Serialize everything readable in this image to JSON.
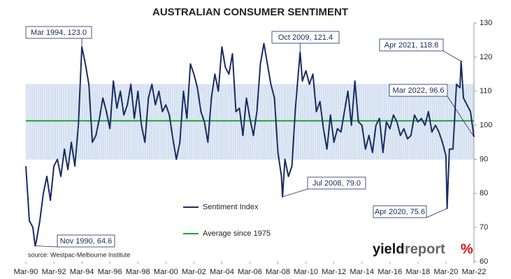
{
  "chart_data": {
    "type": "line",
    "title": "AUSTRALIAN CONSUMER SENTIMENT",
    "source": "source: Westpac-Melbourne Institute",
    "watermark": [
      "yield",
      "report",
      "%"
    ],
    "xlim": [
      1990.167,
      2022.167
    ],
    "xticks": [
      {
        "value": 1990.167,
        "label": "Mar-90"
      },
      {
        "value": 1992.167,
        "label": "Mar-92"
      },
      {
        "value": 1994.167,
        "label": "Mar-94"
      },
      {
        "value": 1996.167,
        "label": "Mar-96"
      },
      {
        "value": 1998.167,
        "label": "Mar-98"
      },
      {
        "value": 2000.167,
        "label": "Mar-00"
      },
      {
        "value": 2002.167,
        "label": "Mar-02"
      },
      {
        "value": 2004.167,
        "label": "Mar-04"
      },
      {
        "value": 2006.167,
        "label": "Mar-06"
      },
      {
        "value": 2008.167,
        "label": "Mar-08"
      },
      {
        "value": 2010.167,
        "label": "Mar-10"
      },
      {
        "value": 2012.167,
        "label": "Mar-12"
      },
      {
        "value": 2014.167,
        "label": "Mar-14"
      },
      {
        "value": 2016.167,
        "label": "Mar-16"
      },
      {
        "value": 2018.167,
        "label": "Mar-18"
      },
      {
        "value": 2020.167,
        "label": "Mar-20"
      },
      {
        "value": 2022.167,
        "label": "Mar-22"
      }
    ],
    "ylim": [
      60,
      130
    ],
    "yticks": [
      60,
      70,
      80,
      90,
      100,
      110,
      120,
      130
    ],
    "shaded_range": [
      90,
      112
    ],
    "shaded_color": "#c9d8ee",
    "average": {
      "name": "Average since 1975",
      "value": 101.3,
      "color": "#1fa23a"
    },
    "x": [
      1990.167,
      1990.417,
      1990.667,
      1990.833,
      1990.917,
      1991.167,
      1991.417,
      1991.667,
      1991.917,
      1992.167,
      1992.417,
      1992.667,
      1992.917,
      1993.167,
      1993.417,
      1993.667,
      1993.917,
      1994.167,
      1994.417,
      1994.667,
      1994.917,
      1995.167,
      1995.417,
      1995.667,
      1995.917,
      1996.167,
      1996.417,
      1996.667,
      1996.917,
      1997.167,
      1997.417,
      1997.667,
      1997.917,
      1998.167,
      1998.417,
      1998.667,
      1998.917,
      1999.167,
      1999.417,
      1999.667,
      1999.917,
      2000.167,
      2000.417,
      2000.667,
      2000.917,
      2001.167,
      2001.417,
      2001.667,
      2001.917,
      2002.167,
      2002.417,
      2002.667,
      2002.917,
      2003.167,
      2003.417,
      2003.667,
      2003.917,
      2004.167,
      2004.417,
      2004.667,
      2004.917,
      2005.167,
      2005.417,
      2005.667,
      2005.917,
      2006.167,
      2006.417,
      2006.667,
      2006.917,
      2007.167,
      2007.417,
      2007.667,
      2007.917,
      2008.167,
      2008.417,
      2008.5,
      2008.667,
      2008.917,
      2009.167,
      2009.417,
      2009.75,
      2009.917,
      2010.167,
      2010.417,
      2010.667,
      2010.917,
      2011.167,
      2011.417,
      2011.667,
      2011.917,
      2012.167,
      2012.417,
      2012.667,
      2012.917,
      2013.167,
      2013.417,
      2013.667,
      2013.917,
      2014.167,
      2014.417,
      2014.667,
      2014.917,
      2015.167,
      2015.417,
      2015.667,
      2015.917,
      2016.167,
      2016.417,
      2016.667,
      2016.917,
      2017.167,
      2017.417,
      2017.667,
      2017.917,
      2018.167,
      2018.417,
      2018.667,
      2018.917,
      2019.167,
      2019.417,
      2019.667,
      2019.917,
      2020.167,
      2020.25,
      2020.417,
      2020.667,
      2020.917,
      2021.167,
      2021.25,
      2021.417,
      2021.667,
      2021.917,
      2022.167
    ],
    "series": [
      {
        "name": "Sentiment Index",
        "color": "#1b2b63",
        "values": [
          88,
          72,
          70,
          64.6,
          66,
          72,
          80,
          85,
          78,
          88,
          90,
          85,
          93,
          87,
          95,
          88,
          100,
          123.0,
          118,
          112,
          95,
          97,
          102,
          108,
          104,
          99,
          113,
          105,
          110,
          103,
          106,
          112,
          102,
          110,
          100,
          95,
          108,
          112,
          106,
          110,
          104,
          106,
          103,
          96,
          90,
          95,
          110,
          102,
          118,
          115,
          111,
          104,
          101,
          95,
          108,
          115,
          110,
          123,
          117,
          115,
          121,
          104,
          105,
          97,
          108,
          102,
          97,
          104,
          118,
          124,
          118,
          112,
          108,
          92,
          85,
          79.0,
          90,
          85,
          88,
          105,
          121.4,
          113,
          116,
          112,
          115,
          104,
          107,
          99,
          93,
          103,
          95,
          99,
          98,
          104,
          110,
          100,
          113,
          101,
          100,
          93,
          97,
          92,
          100,
          102,
          92,
          101,
          99,
          103,
          101,
          97,
          99,
          96,
          97,
          103,
          101,
          102,
          100,
          104,
          98,
          100,
          98,
          95,
          91,
          75.6,
          93,
          93,
          112,
          111,
          118.8,
          108,
          106,
          104,
          96.6
        ]
      }
    ],
    "annotations": [
      {
        "text": "Mar 1994, 123.0",
        "x": 1994.167,
        "value": 123.0
      },
      {
        "text": "Oct 2009, 121.4",
        "x": 2009.75,
        "value": 121.4
      },
      {
        "text": "Apr 2021, 118.8",
        "x": 2021.25,
        "value": 118.8
      },
      {
        "text": "Mar 2022, 96.6",
        "x": 2022.167,
        "value": 96.6
      },
      {
        "text": "Jul 2008, 79.0",
        "x": 2008.5,
        "value": 79.0
      },
      {
        "text": "Apr 2020, 75.6",
        "x": 2020.25,
        "value": 75.6
      },
      {
        "text": "Nov 1990, 64.6",
        "x": 1990.833,
        "value": 64.6
      }
    ]
  }
}
